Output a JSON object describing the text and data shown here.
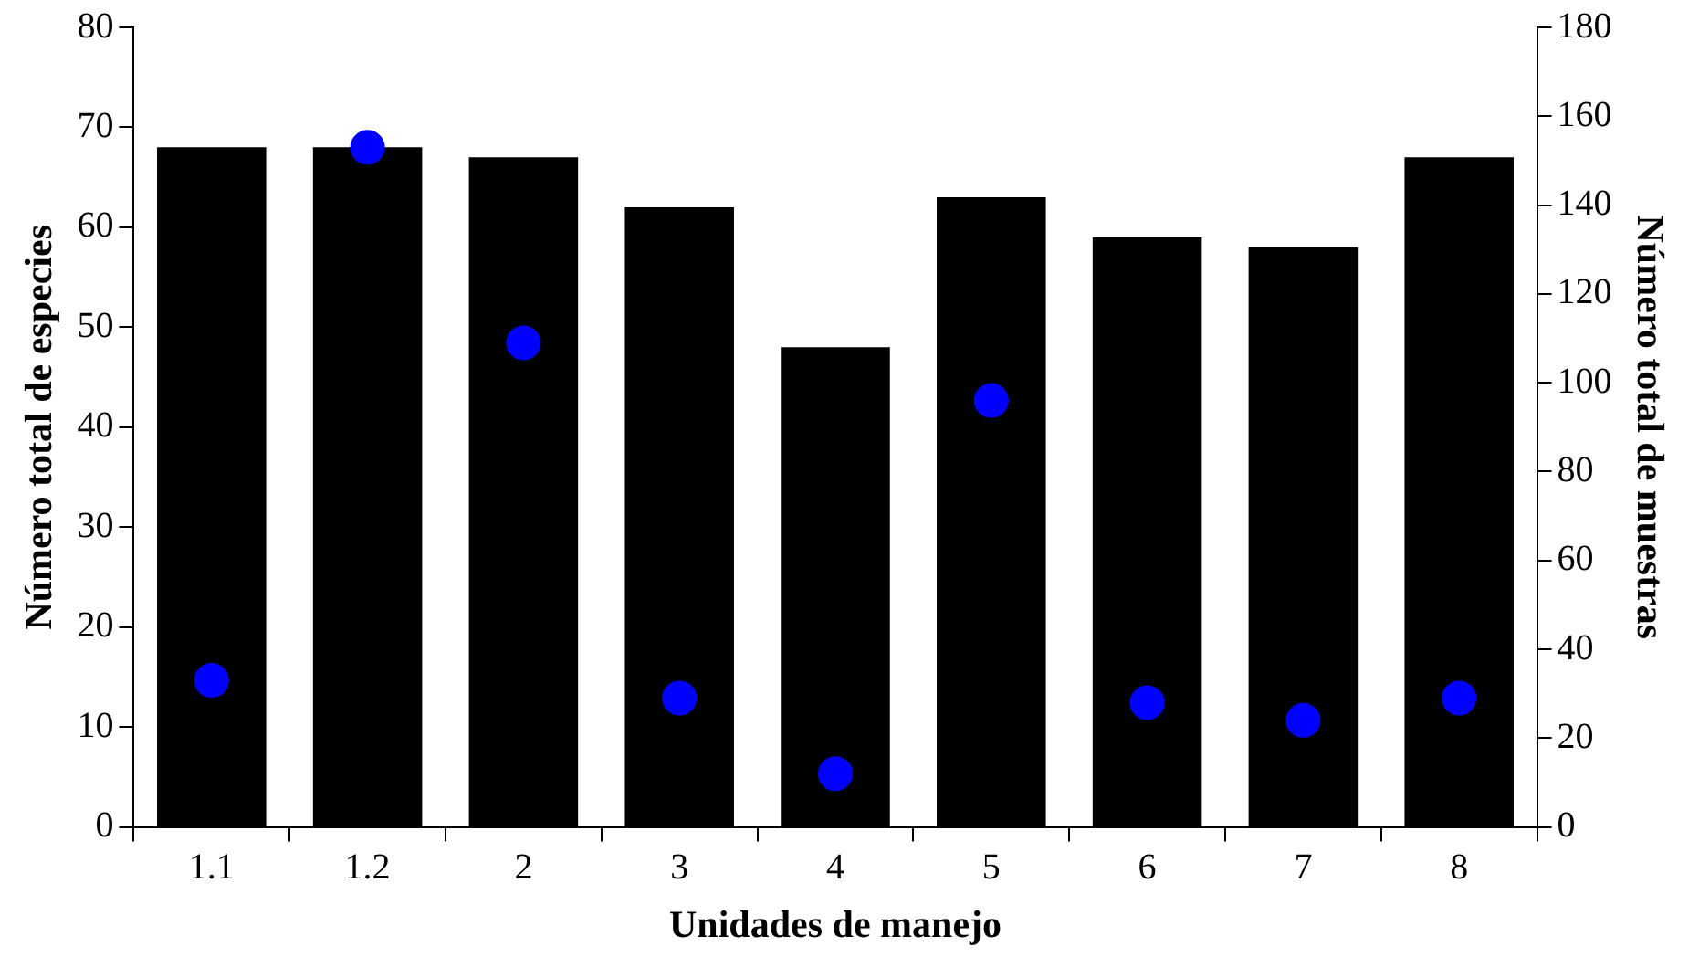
{
  "chart_data": {
    "type": "bar",
    "xlabel": "Unidades de manejo",
    "ylabel": "Número total de especies",
    "y2label": "Número total de muestras",
    "categories": [
      "1.1",
      "1.2",
      "2",
      "3",
      "4",
      "5",
      "6",
      "7",
      "8"
    ],
    "series": [
      {
        "type": "bar",
        "color": "#000000",
        "values": [
          68,
          68,
          67,
          62,
          48,
          63,
          59,
          58,
          67
        ]
      },
      {
        "type": "scatter",
        "axis": "y2",
        "color": "#0000ff",
        "x": [
          "1.1",
          "1.2",
          "2",
          "3",
          "4",
          "5",
          "6",
          "7",
          "8"
        ],
        "values": [
          33,
          153,
          109,
          29,
          12,
          96,
          28,
          24,
          29
        ]
      }
    ],
    "marker": "circle",
    "ylim": [
      0,
      80
    ],
    "yticks": [
      0,
      10,
      20,
      30,
      40,
      50,
      60,
      70,
      80
    ],
    "y2lim": [
      0,
      180
    ],
    "y2ticks": [
      0,
      20,
      40,
      60,
      80,
      100,
      120,
      140,
      160,
      180
    ]
  }
}
